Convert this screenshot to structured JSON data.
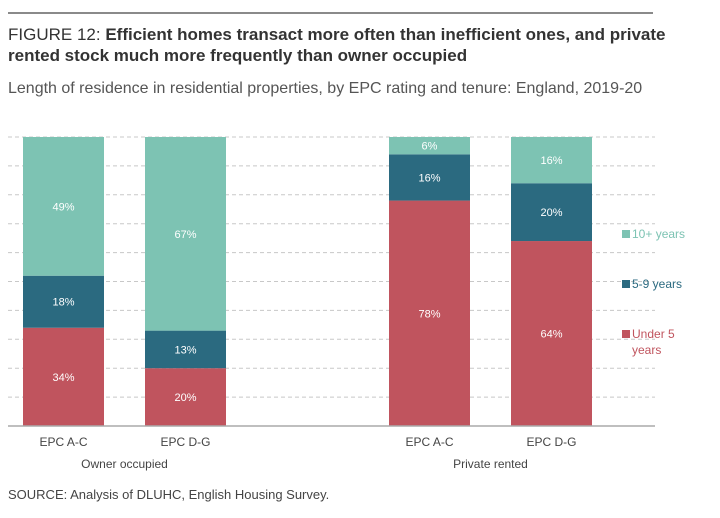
{
  "header": {
    "figure_label": "FIGURE 12: ",
    "title": "Efficient homes transact more often than inefficient ones, and private rented stock much more frequently than owner occupied",
    "subtitle": "Length of residence in residential properties, by EPC rating and tenure: England, 2019-20"
  },
  "source": "SOURCE: Analysis of DLUHC, English Housing Survey.",
  "chart_data": {
    "type": "bar",
    "stacked": true,
    "categories": [
      "EPC A-C",
      "EPC D-G",
      "EPC A-C",
      "EPC D-G"
    ],
    "groups": [
      {
        "label": "Owner occupied",
        "categories": [
          0,
          1
        ]
      },
      {
        "label": "Private rented",
        "categories": [
          2,
          3
        ]
      }
    ],
    "series": [
      {
        "name": "Under 5 years",
        "color": "#c0545e",
        "values": [
          34,
          20,
          78,
          64
        ]
      },
      {
        "name": "5-9 years",
        "color": "#2b6a80",
        "values": [
          18,
          13,
          16,
          20
        ]
      },
      {
        "name": "10+ years",
        "color": "#7dc3b3",
        "values": [
          49,
          67,
          6,
          16
        ]
      }
    ],
    "ylim": [
      0,
      100
    ],
    "grid": true,
    "legend": "right",
    "data_labels": true
  }
}
